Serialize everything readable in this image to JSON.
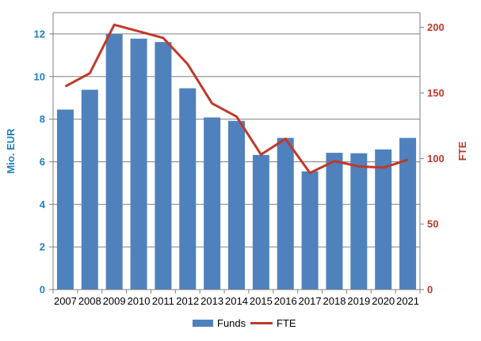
{
  "chart_data": {
    "type": "bar",
    "categories": [
      "2007",
      "2008",
      "2009",
      "2010",
      "2011",
      "2012",
      "2013",
      "2014",
      "2015",
      "2016",
      "2017",
      "2018",
      "2019",
      "2020",
      "2021"
    ],
    "series": [
      {
        "name": "Funds",
        "type": "bar",
        "axis": "left",
        "values": [
          8.45,
          9.38,
          12.0,
          11.78,
          11.62,
          9.45,
          8.08,
          7.92,
          6.32,
          7.12,
          5.55,
          6.42,
          6.4,
          6.58,
          7.12
        ]
      },
      {
        "name": "FTE",
        "type": "line",
        "axis": "right",
        "values": [
          155,
          165,
          202,
          197,
          192,
          172,
          142,
          132,
          103,
          115,
          89,
          98,
          94,
          93,
          99
        ]
      }
    ],
    "ylabel": "Mio. EUR",
    "y2label": "FTE",
    "ylim": [
      0,
      13
    ],
    "y2lim": [
      0,
      211.25
    ],
    "yticks": [
      0,
      2,
      4,
      6,
      8,
      10,
      12
    ],
    "y2ticks": [
      0,
      50,
      100,
      150,
      200
    ],
    "legend_position": "bottom-center",
    "grid": true,
    "colors": {
      "bars": "#4f81bd",
      "line": "#c0392b",
      "left_axis_text": "#1f7fbf",
      "right_axis_text": "#c0392b",
      "grid": "#808080"
    }
  }
}
